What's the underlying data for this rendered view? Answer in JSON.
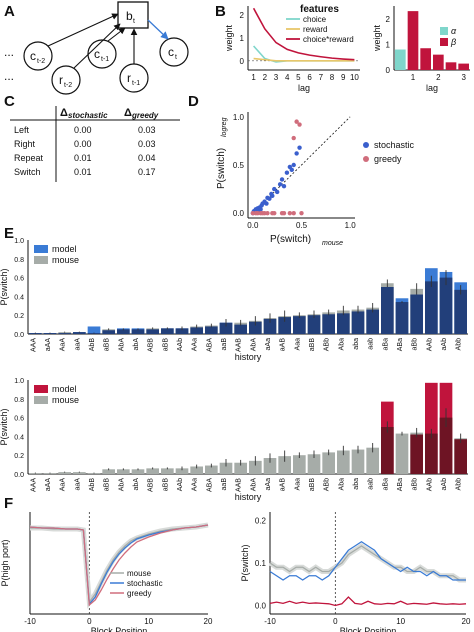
{
  "panel_labels": {
    "A": "A",
    "B": "B",
    "C": "C",
    "D": "D",
    "E": "E",
    "F": "F"
  },
  "diagram_a": {
    "nodes": [
      {
        "id": "bt",
        "label": "b",
        "sub": "t"
      },
      {
        "id": "ct2",
        "label": "c",
        "sub": "t-2"
      },
      {
        "id": "rt2",
        "label": "r",
        "sub": "t-2"
      },
      {
        "id": "ct1",
        "label": "c",
        "sub": "t-1"
      },
      {
        "id": "rt1",
        "label": "r",
        "sub": "t-1"
      },
      {
        "id": "ct",
        "label": "c",
        "sub": "t"
      }
    ],
    "ellipsis": [
      "...",
      "..."
    ]
  },
  "chart_data": [
    {
      "id": "B_left",
      "type": "line",
      "x": [
        1,
        2,
        3,
        4,
        5,
        6,
        7,
        8,
        9,
        10
      ],
      "xlabel": "lag",
      "ylabel": "weight",
      "xlim": [
        0.5,
        10.5
      ],
      "ylim": [
        -0.4,
        2.4
      ],
      "xticks": [
        1,
        2,
        3,
        4,
        5,
        6,
        7,
        8,
        9,
        10
      ],
      "yticks": [
        0,
        1,
        2
      ],
      "legend_title": "features",
      "series": [
        {
          "name": "choice",
          "color": "#7fd6cb",
          "values": [
            0.65,
            0.1,
            -0.05,
            0.0,
            0.0,
            0.0,
            0.0,
            0.0,
            0.0,
            0.0
          ]
        },
        {
          "name": "reward",
          "color": "#e8c76a",
          "values": [
            0.1,
            0.05,
            0.0,
            0.0,
            0.0,
            0.0,
            0.0,
            0.0,
            0.0,
            0.0
          ]
        },
        {
          "name": "choice*reward",
          "color": "#c0143c",
          "values": [
            2.3,
            1.4,
            0.8,
            0.5,
            0.35,
            0.25,
            0.18,
            0.12,
            0.08,
            0.05
          ]
        }
      ]
    },
    {
      "id": "B_right",
      "type": "bar",
      "categories": [
        "α",
        "1",
        "2",
        "3",
        "4",
        "5"
      ],
      "xlabel": "lag",
      "ylabel": "weight",
      "ylim": [
        0,
        2.5
      ],
      "yticks": [
        0,
        1,
        2
      ],
      "xticklabels": [
        "1",
        "2",
        "3"
      ],
      "legend": [
        {
          "name": "α",
          "color": "#7fd6cb"
        },
        {
          "name": "β",
          "color": "#c0143c"
        }
      ],
      "values": [
        0.8,
        2.3,
        0.85,
        0.6,
        0.3,
        0.25
      ]
    },
    {
      "id": "C",
      "type": "table",
      "columns": [
        "",
        "Δ",
        "Δ"
      ],
      "column_subs": [
        "",
        "stochastic",
        "greedy"
      ],
      "rows": [
        [
          "Left",
          "0.00",
          "0.03"
        ],
        [
          "Right",
          "0.00",
          "0.03"
        ],
        [
          "Repeat",
          "0.01",
          "0.04"
        ],
        [
          "Switch",
          "0.01",
          "0.17"
        ]
      ]
    },
    {
      "id": "D",
      "type": "scatter",
      "xlabel": "P(switch)",
      "xlabel_sub": "mouse",
      "ylabel": "P(switch)",
      "ylabel_sub": "logreg",
      "xlim": [
        -0.05,
        1.05
      ],
      "ylim": [
        -0.05,
        1.05
      ],
      "xticks": [
        0.0,
        0.5,
        1.0
      ],
      "yticks": [
        0.0,
        0.5,
        1.0
      ],
      "series": [
        {
          "name": "stochastic",
          "color": "#3a5fcd",
          "points": [
            [
              0.0,
              0.0
            ],
            [
              0.01,
              0.02
            ],
            [
              0.02,
              0.01
            ],
            [
              0.03,
              0.04
            ],
            [
              0.04,
              0.02
            ],
            [
              0.05,
              0.05
            ],
            [
              0.06,
              0.03
            ],
            [
              0.07,
              0.06
            ],
            [
              0.08,
              0.04
            ],
            [
              0.09,
              0.08
            ],
            [
              0.1,
              0.1
            ],
            [
              0.12,
              0.12
            ],
            [
              0.14,
              0.1
            ],
            [
              0.15,
              0.16
            ],
            [
              0.17,
              0.15
            ],
            [
              0.19,
              0.2
            ],
            [
              0.2,
              0.18
            ],
            [
              0.22,
              0.25
            ],
            [
              0.25,
              0.22
            ],
            [
              0.28,
              0.3
            ],
            [
              0.3,
              0.35
            ],
            [
              0.32,
              0.28
            ],
            [
              0.35,
              0.42
            ],
            [
              0.38,
              0.48
            ],
            [
              0.4,
              0.45
            ],
            [
              0.42,
              0.5
            ],
            [
              0.45,
              0.62
            ],
            [
              0.48,
              0.68
            ]
          ]
        },
        {
          "name": "greedy",
          "color": "#d06d7c",
          "points": [
            [
              0.0,
              0.0
            ],
            [
              0.03,
              0.0
            ],
            [
              0.05,
              0.0
            ],
            [
              0.08,
              0.0
            ],
            [
              0.1,
              0.0
            ],
            [
              0.12,
              0.0
            ],
            [
              0.15,
              0.0
            ],
            [
              0.2,
              0.0
            ],
            [
              0.22,
              0.0
            ],
            [
              0.3,
              0.0
            ],
            [
              0.32,
              0.0
            ],
            [
              0.38,
              0.0
            ],
            [
              0.42,
              0.0
            ],
            [
              0.42,
              0.78
            ],
            [
              0.45,
              0.95
            ],
            [
              0.48,
              0.92
            ],
            [
              0.5,
              0.0
            ]
          ]
        }
      ]
    },
    {
      "id": "E_top",
      "type": "bar",
      "categories": [
        "AAA",
        "aAA",
        "AaA",
        "aaA",
        "AbB",
        "aBB",
        "AbA",
        "abA",
        "ABB",
        "aBB",
        "AAb",
        "AAa",
        "ABA",
        "aaB",
        "AAB",
        "AbA",
        "aAa",
        "aAB",
        "Aaa",
        "aBB",
        "ABb",
        "Aba",
        "aba",
        "aab",
        "aBa",
        "ABa",
        "aBb",
        "AAb",
        "aAb",
        "Abb"
      ],
      "xlabel": "history",
      "ylabel": "P(switch)",
      "ylim": [
        0,
        1.0
      ],
      "yticks": [
        0.0,
        0.2,
        0.4,
        0.6,
        0.8,
        1.0
      ],
      "legend": [
        {
          "name": "model",
          "color": "#3a7bd5"
        },
        {
          "name": "mouse",
          "color": "#a6aca8"
        }
      ],
      "model": [
        0.01,
        0.01,
        0.01,
        0.02,
        0.08,
        0.04,
        0.06,
        0.06,
        0.05,
        0.06,
        0.06,
        0.07,
        0.08,
        0.12,
        0.1,
        0.13,
        0.16,
        0.18,
        0.19,
        0.2,
        0.21,
        0.22,
        0.24,
        0.26,
        0.5,
        0.38,
        0.42,
        0.7,
        0.66,
        0.55
      ],
      "mouse": [
        0.01,
        0.01,
        0.02,
        0.02,
        0.01,
        0.05,
        0.05,
        0.05,
        0.06,
        0.06,
        0.06,
        0.08,
        0.09,
        0.12,
        0.12,
        0.14,
        0.17,
        0.19,
        0.2,
        0.21,
        0.23,
        0.25,
        0.26,
        0.28,
        0.54,
        0.34,
        0.48,
        0.56,
        0.6,
        0.47
      ],
      "err": [
        0.005,
        0.005,
        0.005,
        0.005,
        0.005,
        0.01,
        0.01,
        0.01,
        0.01,
        0.01,
        0.02,
        0.02,
        0.02,
        0.04,
        0.03,
        0.05,
        0.05,
        0.06,
        0.03,
        0.04,
        0.03,
        0.05,
        0.04,
        0.05,
        0.04,
        0.01,
        0.06,
        0.06,
        0.08,
        0.05
      ]
    },
    {
      "id": "E_bottom",
      "type": "bar",
      "categories": [
        "AAA",
        "aAA",
        "AaA",
        "aaA",
        "AbB",
        "aBB",
        "AbA",
        "abA",
        "ABB",
        "aBB",
        "AAb",
        "AAa",
        "ABA",
        "aaB",
        "AAB",
        "AbA",
        "aAa",
        "aAB",
        "Aaa",
        "aBB",
        "ABb",
        "Aba",
        "aba",
        "aab",
        "aBa",
        "ABa",
        "aBb",
        "AAb",
        "aAb",
        "Abb"
      ],
      "xlabel": "history",
      "ylabel": "P(switch)",
      "ylim": [
        0,
        1.0
      ],
      "yticks": [
        0.0,
        0.2,
        0.4,
        0.6,
        0.8,
        1.0
      ],
      "legend": [
        {
          "name": "model",
          "color": "#c0143c"
        },
        {
          "name": "mouse",
          "color": "#a6aca8"
        }
      ],
      "model": [
        0.0,
        0.0,
        0.0,
        0.0,
        0.0,
        0.0,
        0.0,
        0.0,
        0.0,
        0.0,
        0.0,
        0.0,
        0.0,
        0.0,
        0.0,
        0.0,
        0.0,
        0.0,
        0.0,
        0.0,
        0.0,
        0.0,
        0.0,
        0.0,
        0.77,
        0.0,
        0.42,
        0.97,
        0.97,
        0.37
      ],
      "mouse": [
        0.01,
        0.01,
        0.02,
        0.02,
        0.01,
        0.05,
        0.05,
        0.05,
        0.06,
        0.06,
        0.06,
        0.08,
        0.09,
        0.12,
        0.12,
        0.14,
        0.17,
        0.19,
        0.2,
        0.21,
        0.23,
        0.25,
        0.26,
        0.28,
        0.5,
        0.43,
        0.44,
        0.43,
        0.6,
        0.38
      ],
      "err": [
        0.005,
        0.005,
        0.005,
        0.005,
        0.005,
        0.01,
        0.01,
        0.01,
        0.01,
        0.01,
        0.02,
        0.02,
        0.02,
        0.04,
        0.03,
        0.05,
        0.05,
        0.06,
        0.03,
        0.04,
        0.03,
        0.05,
        0.04,
        0.05,
        0.06,
        0.02,
        0.05,
        0.05,
        0.1,
        0.05
      ]
    },
    {
      "id": "F_left",
      "type": "line",
      "xlabel": "Block Position",
      "ylabel": "P(high port)",
      "xlim": [
        -10,
        20
      ],
      "ylim": [
        -0.02,
        1.0
      ],
      "xticks": [
        -10,
        0,
        10,
        20
      ],
      "vline": 0,
      "series": [
        {
          "name": "mouse",
          "color": "#a6aca8",
          "x": [
            -10,
            -8,
            -6,
            -4,
            -2,
            -1,
            0,
            1,
            2,
            3,
            4,
            5,
            6,
            7,
            8,
            10,
            12,
            14,
            16,
            18,
            20
          ],
          "y": [
            0.84,
            0.84,
            0.83,
            0.83,
            0.83,
            0.82,
            0.1,
            0.18,
            0.3,
            0.42,
            0.52,
            0.6,
            0.66,
            0.71,
            0.74,
            0.78,
            0.81,
            0.83,
            0.84,
            0.85,
            0.87
          ]
        },
        {
          "name": "stochastic",
          "color": "#3a7bd5",
          "x": [
            -10,
            -8,
            -6,
            -4,
            -2,
            -1,
            0,
            1,
            2,
            3,
            4,
            5,
            6,
            7,
            8,
            10,
            12,
            14,
            16,
            18,
            20
          ],
          "y": [
            0.85,
            0.84,
            0.84,
            0.83,
            0.83,
            0.82,
            0.08,
            0.15,
            0.28,
            0.4,
            0.5,
            0.58,
            0.64,
            0.69,
            0.73,
            0.77,
            0.8,
            0.82,
            0.84,
            0.85,
            0.87
          ]
        },
        {
          "name": "greedy",
          "color": "#d06d7c",
          "x": [
            -10,
            -8,
            -6,
            -4,
            -2,
            -1,
            0,
            1,
            2,
            3,
            4,
            5,
            6,
            7,
            8,
            10,
            12,
            14,
            16,
            18,
            20
          ],
          "y": [
            0.85,
            0.84,
            0.84,
            0.83,
            0.83,
            0.82,
            0.07,
            0.12,
            0.22,
            0.33,
            0.43,
            0.52,
            0.59,
            0.65,
            0.7,
            0.75,
            0.79,
            0.82,
            0.84,
            0.85,
            0.87
          ]
        }
      ]
    },
    {
      "id": "F_right",
      "type": "line",
      "xlabel": "Block Position",
      "ylabel": "P(switch)",
      "xlim": [
        -10,
        20
      ],
      "ylim": [
        -0.02,
        0.22
      ],
      "xticks": [
        -10,
        0,
        10,
        20
      ],
      "yticks": [
        0.0,
        0.1,
        0.2
      ],
      "vline": 0,
      "series": [
        {
          "name": "mouse",
          "color": "#a6aca8",
          "x": [
            -10,
            -9,
            -8,
            -7,
            -6,
            -5,
            -4,
            -3,
            -2,
            -1,
            0,
            1,
            2,
            3,
            4,
            5,
            6,
            7,
            8,
            9,
            10,
            11,
            12,
            13,
            14,
            15,
            16,
            17,
            18,
            19,
            20
          ],
          "y": [
            0.1,
            0.09,
            0.09,
            0.08,
            0.09,
            0.09,
            0.08,
            0.09,
            0.08,
            0.08,
            0.09,
            0.1,
            0.12,
            0.13,
            0.14,
            0.13,
            0.12,
            0.11,
            0.1,
            0.09,
            0.09,
            0.08,
            0.08,
            0.09,
            0.08,
            0.08,
            0.07,
            0.07,
            0.07,
            0.06,
            0.06
          ]
        },
        {
          "name": "stochastic",
          "color": "#3a7bd5",
          "x": [
            -10,
            -9,
            -8,
            -7,
            -6,
            -5,
            -4,
            -3,
            -2,
            -1,
            0,
            1,
            2,
            3,
            4,
            5,
            6,
            7,
            8,
            9,
            10,
            11,
            12,
            13,
            14,
            15,
            16,
            17,
            18,
            19,
            20
          ],
          "y": [
            0.08,
            0.07,
            0.06,
            0.07,
            0.07,
            0.06,
            0.07,
            0.07,
            0.06,
            0.07,
            0.09,
            0.11,
            0.13,
            0.14,
            0.15,
            0.14,
            0.13,
            0.11,
            0.1,
            0.09,
            0.08,
            0.09,
            0.08,
            0.08,
            0.07,
            0.08,
            0.07,
            0.07,
            0.06,
            0.06,
            0.06
          ]
        },
        {
          "name": "greedy",
          "color": "#c0143c",
          "x": [
            -10,
            -9,
            -8,
            -7,
            -6,
            -5,
            -4,
            -3,
            -2,
            -1,
            0,
            1,
            2,
            3,
            4,
            5,
            6,
            7,
            8,
            9,
            10,
            11,
            12,
            13,
            14,
            15,
            16,
            17,
            18,
            19,
            20
          ],
          "y": [
            0.005,
            0.008,
            0.005,
            0.01,
            0.005,
            0.008,
            0.005,
            0.006,
            0.005,
            0.004,
            0.0,
            0.004,
            0.02,
            0.005,
            0.003,
            0.01,
            0.004,
            0.003,
            0.005,
            0.004,
            0.01,
            0.003,
            0.005,
            0.004,
            0.003,
            0.006,
            0.004,
            0.003,
            0.004,
            0.003,
            0.004
          ]
        }
      ]
    }
  ]
}
